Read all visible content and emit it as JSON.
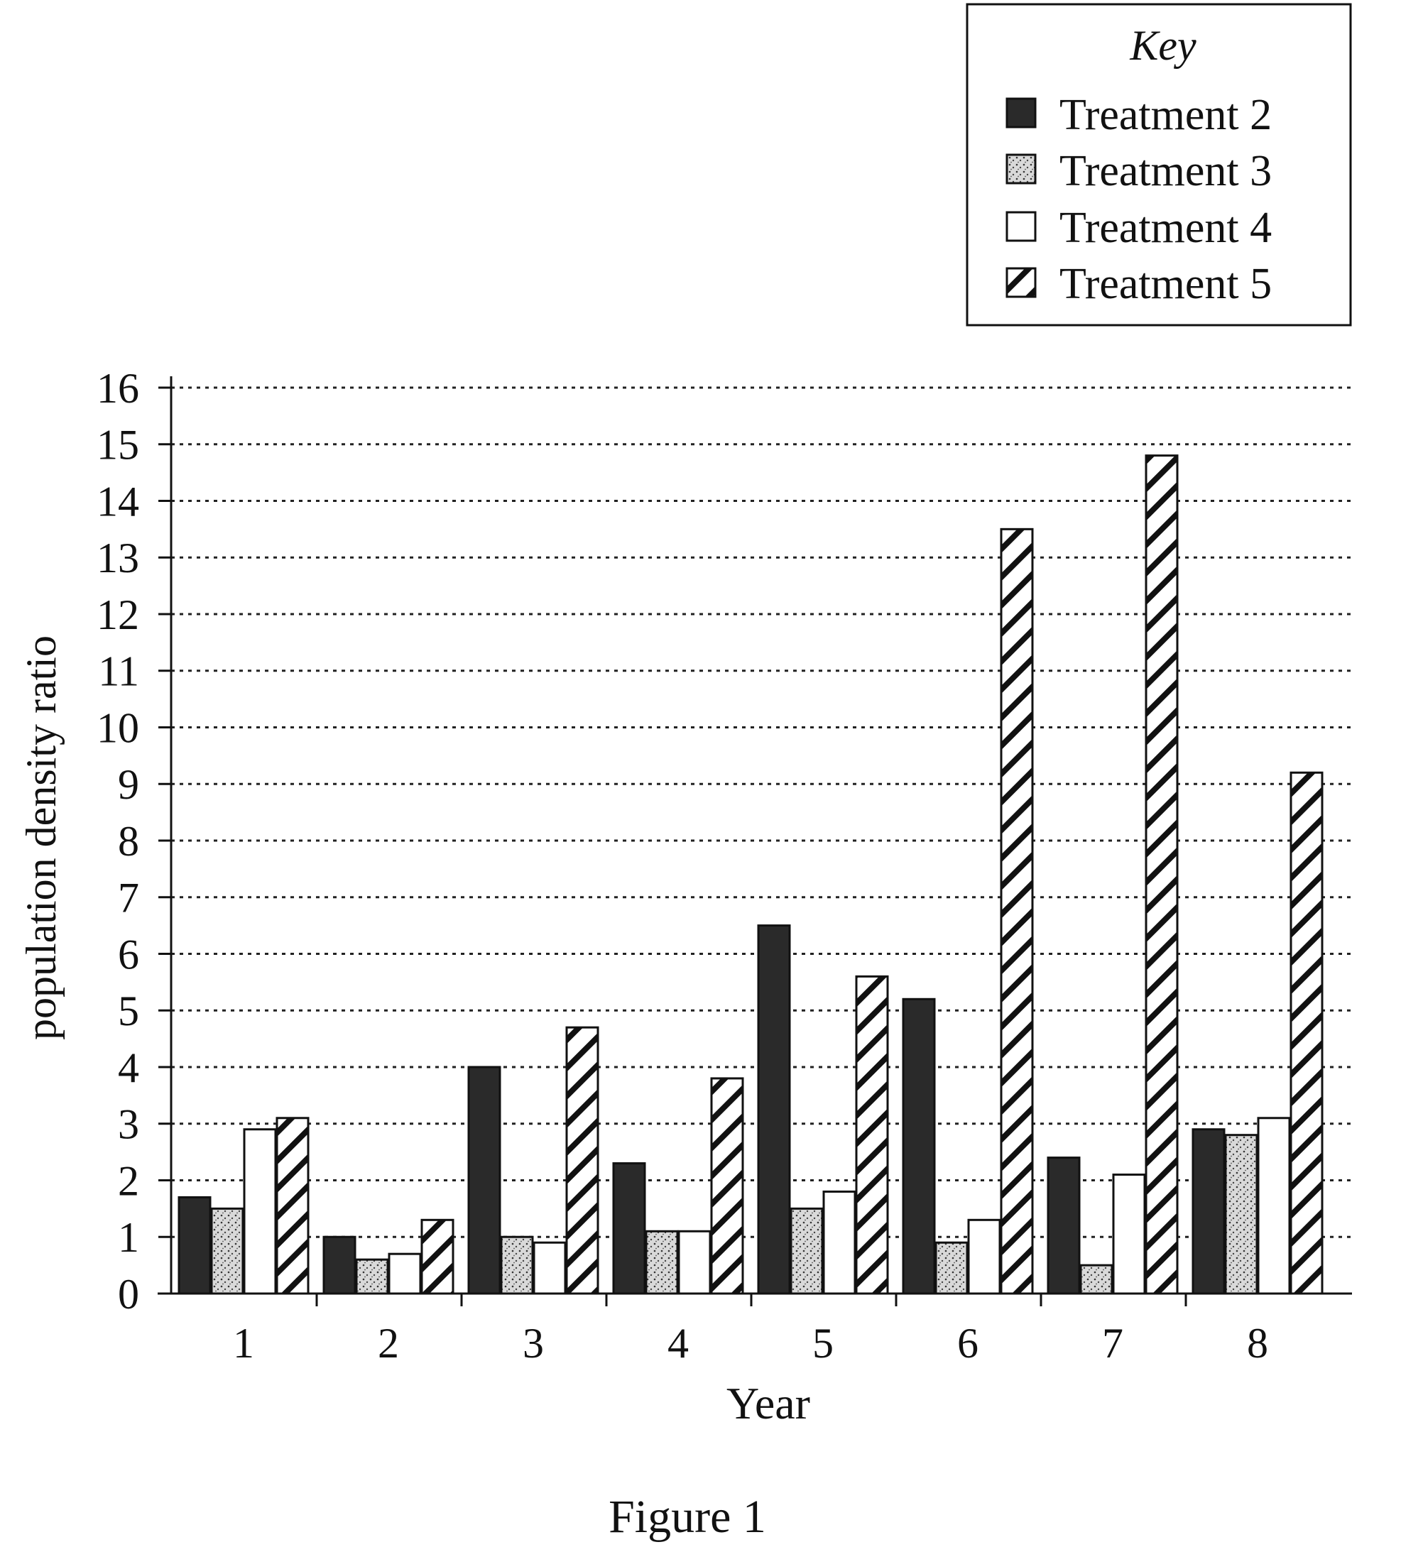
{
  "figure_caption": "Figure 1",
  "legend": {
    "title": "Key",
    "placement": "top-right"
  },
  "colors": {
    "ink": "#111111",
    "gridline": "#222222",
    "treatment_2_fill": "#2a2a2a",
    "treatment_3_fill": "#d9d9d9",
    "treatment_4_fill": "#ffffff",
    "treatment_5_fill": "hatched"
  },
  "chart_data": {
    "type": "bar",
    "title": "",
    "xlabel": "Year",
    "ylabel": "population density ratio",
    "ylim": [
      0,
      16
    ],
    "yticks": [
      0,
      1,
      2,
      3,
      4,
      5,
      6,
      7,
      8,
      9,
      10,
      11,
      12,
      13,
      14,
      15,
      16
    ],
    "grid": true,
    "categories": [
      "1",
      "2",
      "3",
      "4",
      "5",
      "6",
      "7",
      "8"
    ],
    "series": [
      {
        "name": "Treatment 2",
        "pattern": "solid-dark",
        "values": [
          1.7,
          1.0,
          4.0,
          2.3,
          6.5,
          5.2,
          2.4,
          2.9
        ]
      },
      {
        "name": "Treatment 3",
        "pattern": "stippled",
        "values": [
          1.5,
          0.6,
          1.0,
          1.1,
          1.5,
          0.9,
          0.5,
          2.8
        ]
      },
      {
        "name": "Treatment 4",
        "pattern": "open",
        "values": [
          2.9,
          0.7,
          0.9,
          1.1,
          1.8,
          1.3,
          2.1,
          3.1
        ]
      },
      {
        "name": "Treatment 5",
        "pattern": "hatched",
        "values": [
          3.1,
          1.3,
          4.7,
          3.8,
          5.6,
          13.5,
          14.8,
          9.2
        ]
      }
    ]
  }
}
